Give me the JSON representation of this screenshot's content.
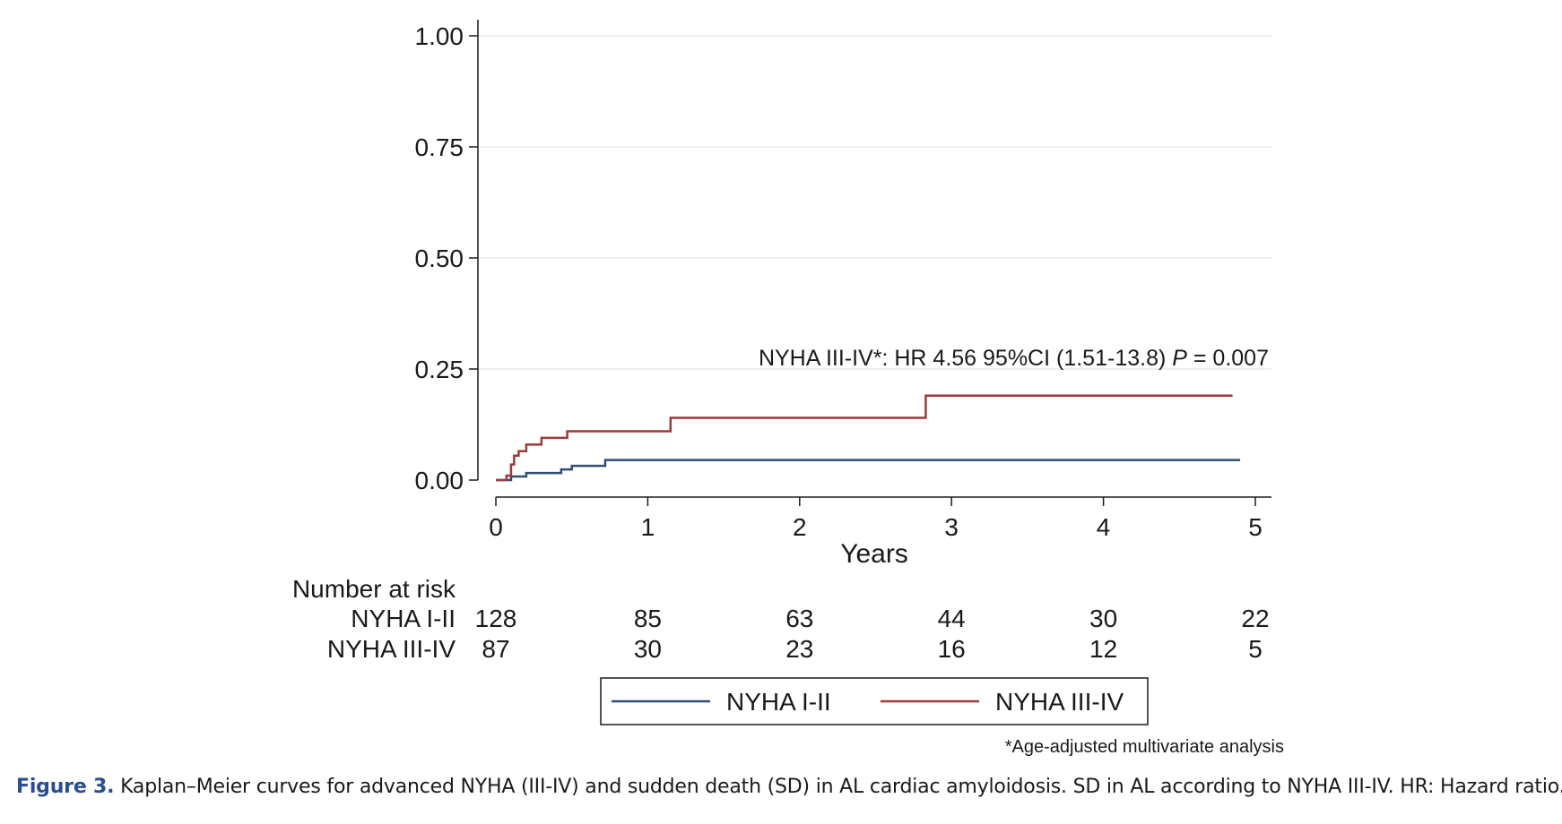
{
  "chart_data": {
    "type": "line",
    "plot_style": "kaplan-meier step curves",
    "xlabel": "Years",
    "ylabel": "",
    "xlim": [
      0,
      5
    ],
    "ylim": [
      0,
      1
    ],
    "x_ticks": [
      "0",
      "1",
      "2",
      "3",
      "4",
      "5"
    ],
    "y_ticks": [
      "0.00",
      "0.25",
      "0.50",
      "0.75",
      "1.00"
    ],
    "grid": true,
    "series": [
      {
        "name": "NYHA I-II",
        "color": "#2f4e74",
        "x": [
          0,
          0.05,
          0.1,
          0.2,
          0.43,
          0.5,
          0.72,
          4.9
        ],
        "y": [
          0,
          0,
          0.008,
          0.016,
          0.024,
          0.032,
          0.045,
          0.045
        ]
      },
      {
        "name": "NYHA III-IV",
        "color": "#9e3a3a",
        "x": [
          0,
          0.07,
          0.1,
          0.12,
          0.15,
          0.2,
          0.3,
          0.47,
          1.15,
          2.83,
          4.85
        ],
        "y": [
          0,
          0.01,
          0.035,
          0.055,
          0.065,
          0.08,
          0.095,
          0.11,
          0.14,
          0.19,
          0.19
        ]
      }
    ],
    "annotation": {
      "text": "NYHA III-IV*: HR 4.56 95%CI (1.51-13.8) ",
      "p_label": "P",
      "p_value": " = 0.007"
    },
    "risk_table": {
      "title": "Number at risk",
      "rows": [
        {
          "label": "NYHA I-II",
          "values": [
            "128",
            "85",
            "63",
            "44",
            "30",
            "22"
          ]
        },
        {
          "label": "NYHA III-IV",
          "values": [
            "87",
            "30",
            "23",
            "16",
            "12",
            "5"
          ]
        }
      ]
    },
    "legend": {
      "position": "bottom",
      "entries": [
        "NYHA I-II",
        "NYHA III-IV"
      ]
    },
    "footnote": "*Age-adjusted multivariate analysis"
  },
  "caption": {
    "figure_label": "Figure 3.",
    "text": " Kaplan–Meier curves for advanced NYHA (III-IV) and sudden death (SD) in AL cardiac amyloidosis. SD in AL according to NYHA III-IV. HR: Hazard ratio."
  }
}
